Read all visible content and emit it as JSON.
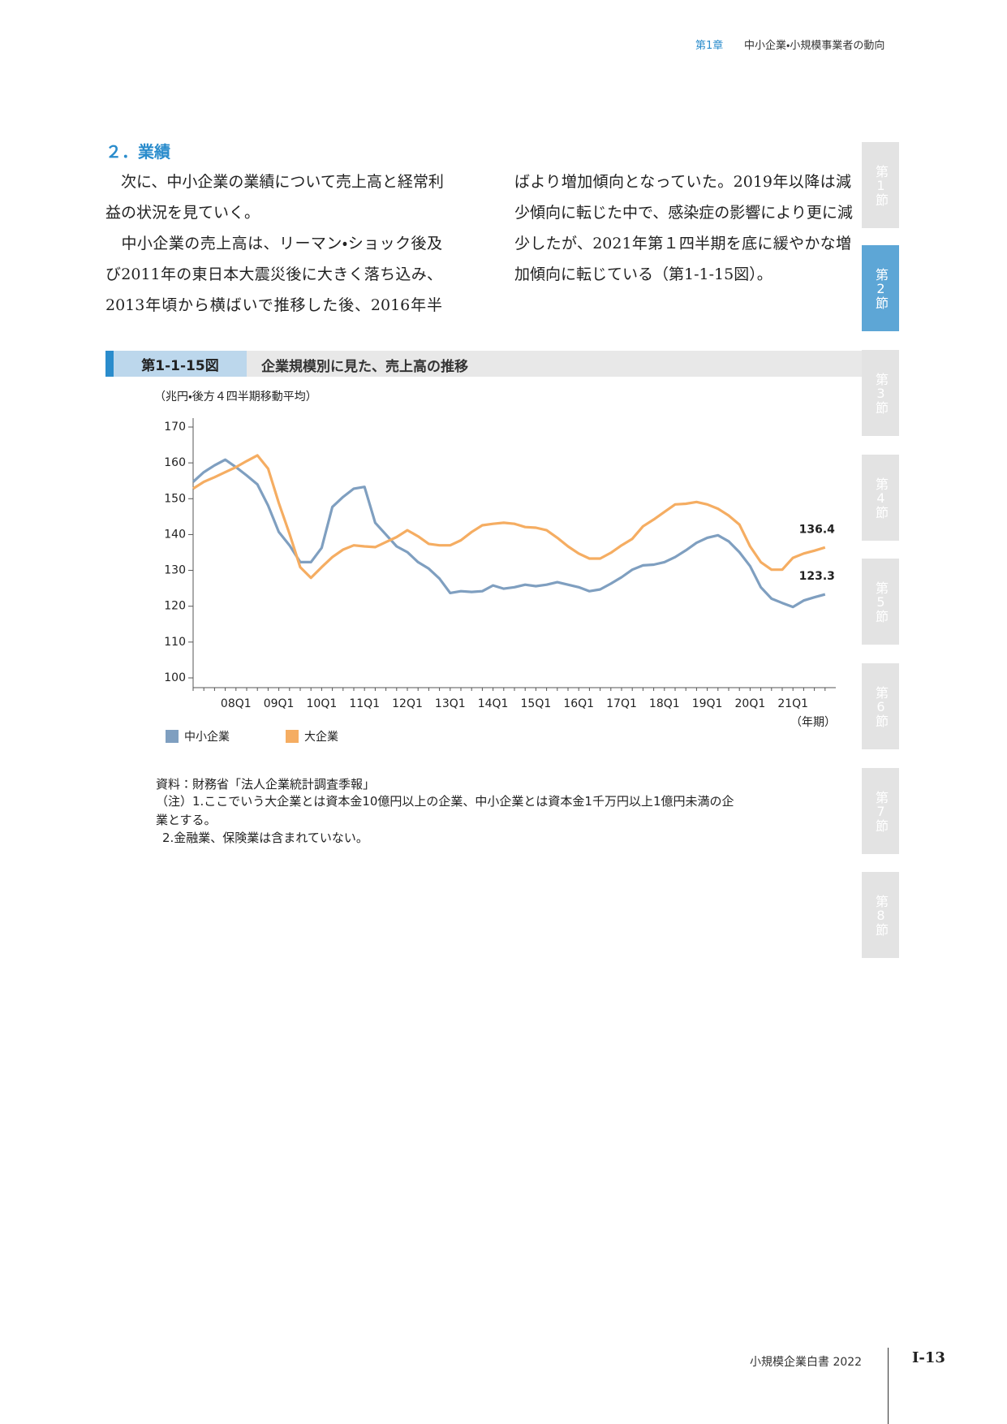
{
  "header": {
    "chapter": "第1章",
    "title": "中小企業・小規模事業者の動向"
  },
  "section": {
    "title": "２．業績"
  },
  "body": {
    "left_lines": [
      "　次に、中小企業の業績について売上高と経常利",
      "益の状況を見ていく。",
      "　中小企業の売上高は、リーマン・ショック後及",
      "び2011年の東日本大震災後に大きく落ち込み、",
      "2013年頃から横ばいで推移した後、2016年半"
    ],
    "right_lines": [
      "ばより増加傾向となっていた。2019年以降は減",
      "少傾向に転じた中で、感染症の影響により更に減",
      "少したが、2021年第１四半期を底に緩やかな増",
      "加傾向に転じている（第1-1-15図）。"
    ]
  },
  "figure": {
    "number": "第1-1-15図",
    "title": "企業規模別に見た、売上高の推移"
  },
  "chart_data": {
    "type": "line",
    "y_label": "（兆円・後方４四半期移動平均）",
    "x_label": "（年期）",
    "categories": [
      null,
      null,
      null,
      null,
      "08Q1",
      null,
      null,
      null,
      "09Q1",
      null,
      null,
      null,
      "10Q1",
      null,
      null,
      null,
      "11Q1",
      null,
      null,
      null,
      "12Q1",
      null,
      null,
      null,
      "13Q1",
      null,
      null,
      null,
      "14Q1",
      null,
      null,
      null,
      "15Q1",
      null,
      null,
      null,
      "16Q1",
      null,
      null,
      null,
      "17Q1",
      null,
      null,
      null,
      "18Q1",
      null,
      null,
      null,
      "19Q1",
      null,
      null,
      null,
      "20Q1",
      null,
      null,
      null,
      "21Q1",
      null,
      null,
      null
    ],
    "series": [
      {
        "name": "中小企業",
        "color": "#7f9fc0",
        "values": [
          154.7,
          157.4,
          159.3,
          160.9,
          158.8,
          156.5,
          154.0,
          148.1,
          140.7,
          137.0,
          132.3,
          132.3,
          136.3,
          147.7,
          150.5,
          152.8,
          153.3,
          143.3,
          140.0,
          136.7,
          135.1,
          132.3,
          130.5,
          127.7,
          123.7,
          124.2,
          124.0,
          124.2,
          125.8,
          124.9,
          125.3,
          126.0,
          125.6,
          126.0,
          126.7,
          126.0,
          125.3,
          124.2,
          124.7,
          126.3,
          128.1,
          130.2,
          131.4,
          131.6,
          132.3,
          133.7,
          135.6,
          137.7,
          139.1,
          139.8,
          138.1,
          135.1,
          131.2,
          125.3,
          122.1,
          120.9,
          119.8,
          121.6,
          122.5,
          123.3
        ]
      },
      {
        "name": "大企業",
        "color": "#f5ad62",
        "values": [
          152.8,
          154.7,
          156.0,
          157.4,
          158.8,
          160.5,
          162.1,
          158.4,
          148.8,
          140.2,
          130.9,
          127.9,
          130.9,
          133.7,
          135.8,
          137.0,
          136.7,
          136.5,
          137.9,
          139.3,
          141.2,
          139.5,
          137.4,
          137.0,
          137.0,
          138.4,
          140.7,
          142.6,
          143.0,
          143.3,
          143.0,
          142.1,
          141.9,
          141.2,
          139.1,
          136.7,
          134.7,
          133.3,
          133.3,
          134.9,
          137.0,
          138.8,
          142.3,
          144.2,
          146.3,
          148.4,
          148.6,
          149.1,
          148.4,
          147.2,
          145.3,
          142.8,
          136.7,
          132.3,
          130.2,
          130.2,
          133.5,
          134.7,
          135.5,
          136.4
        ]
      }
    ],
    "ylim": [
      100,
      170
    ],
    "yticks": [
      100,
      110,
      120,
      130,
      140,
      150,
      160,
      170
    ],
    "grid": false,
    "label_last": true,
    "legend": "bottom-left"
  },
  "notes": [
    "資料：財務省「法人企業統計調査季報」",
    "（注）1.ここでいう大企業とは資本金10億円以上の企業、中小企業とは資本金1千万円以上1億円未満の企",
    "業とする。",
    "2.金融業、保険業は含まれていない。"
  ],
  "side_tabs": [
    "第1節",
    "第2節",
    "第3節",
    "第4節",
    "第5節",
    "第6節",
    "第7節",
    "第8節"
  ],
  "active_tab": 1,
  "footer": {
    "book": "小規模企業白書 2022",
    "page": "Ⅰ-13"
  }
}
